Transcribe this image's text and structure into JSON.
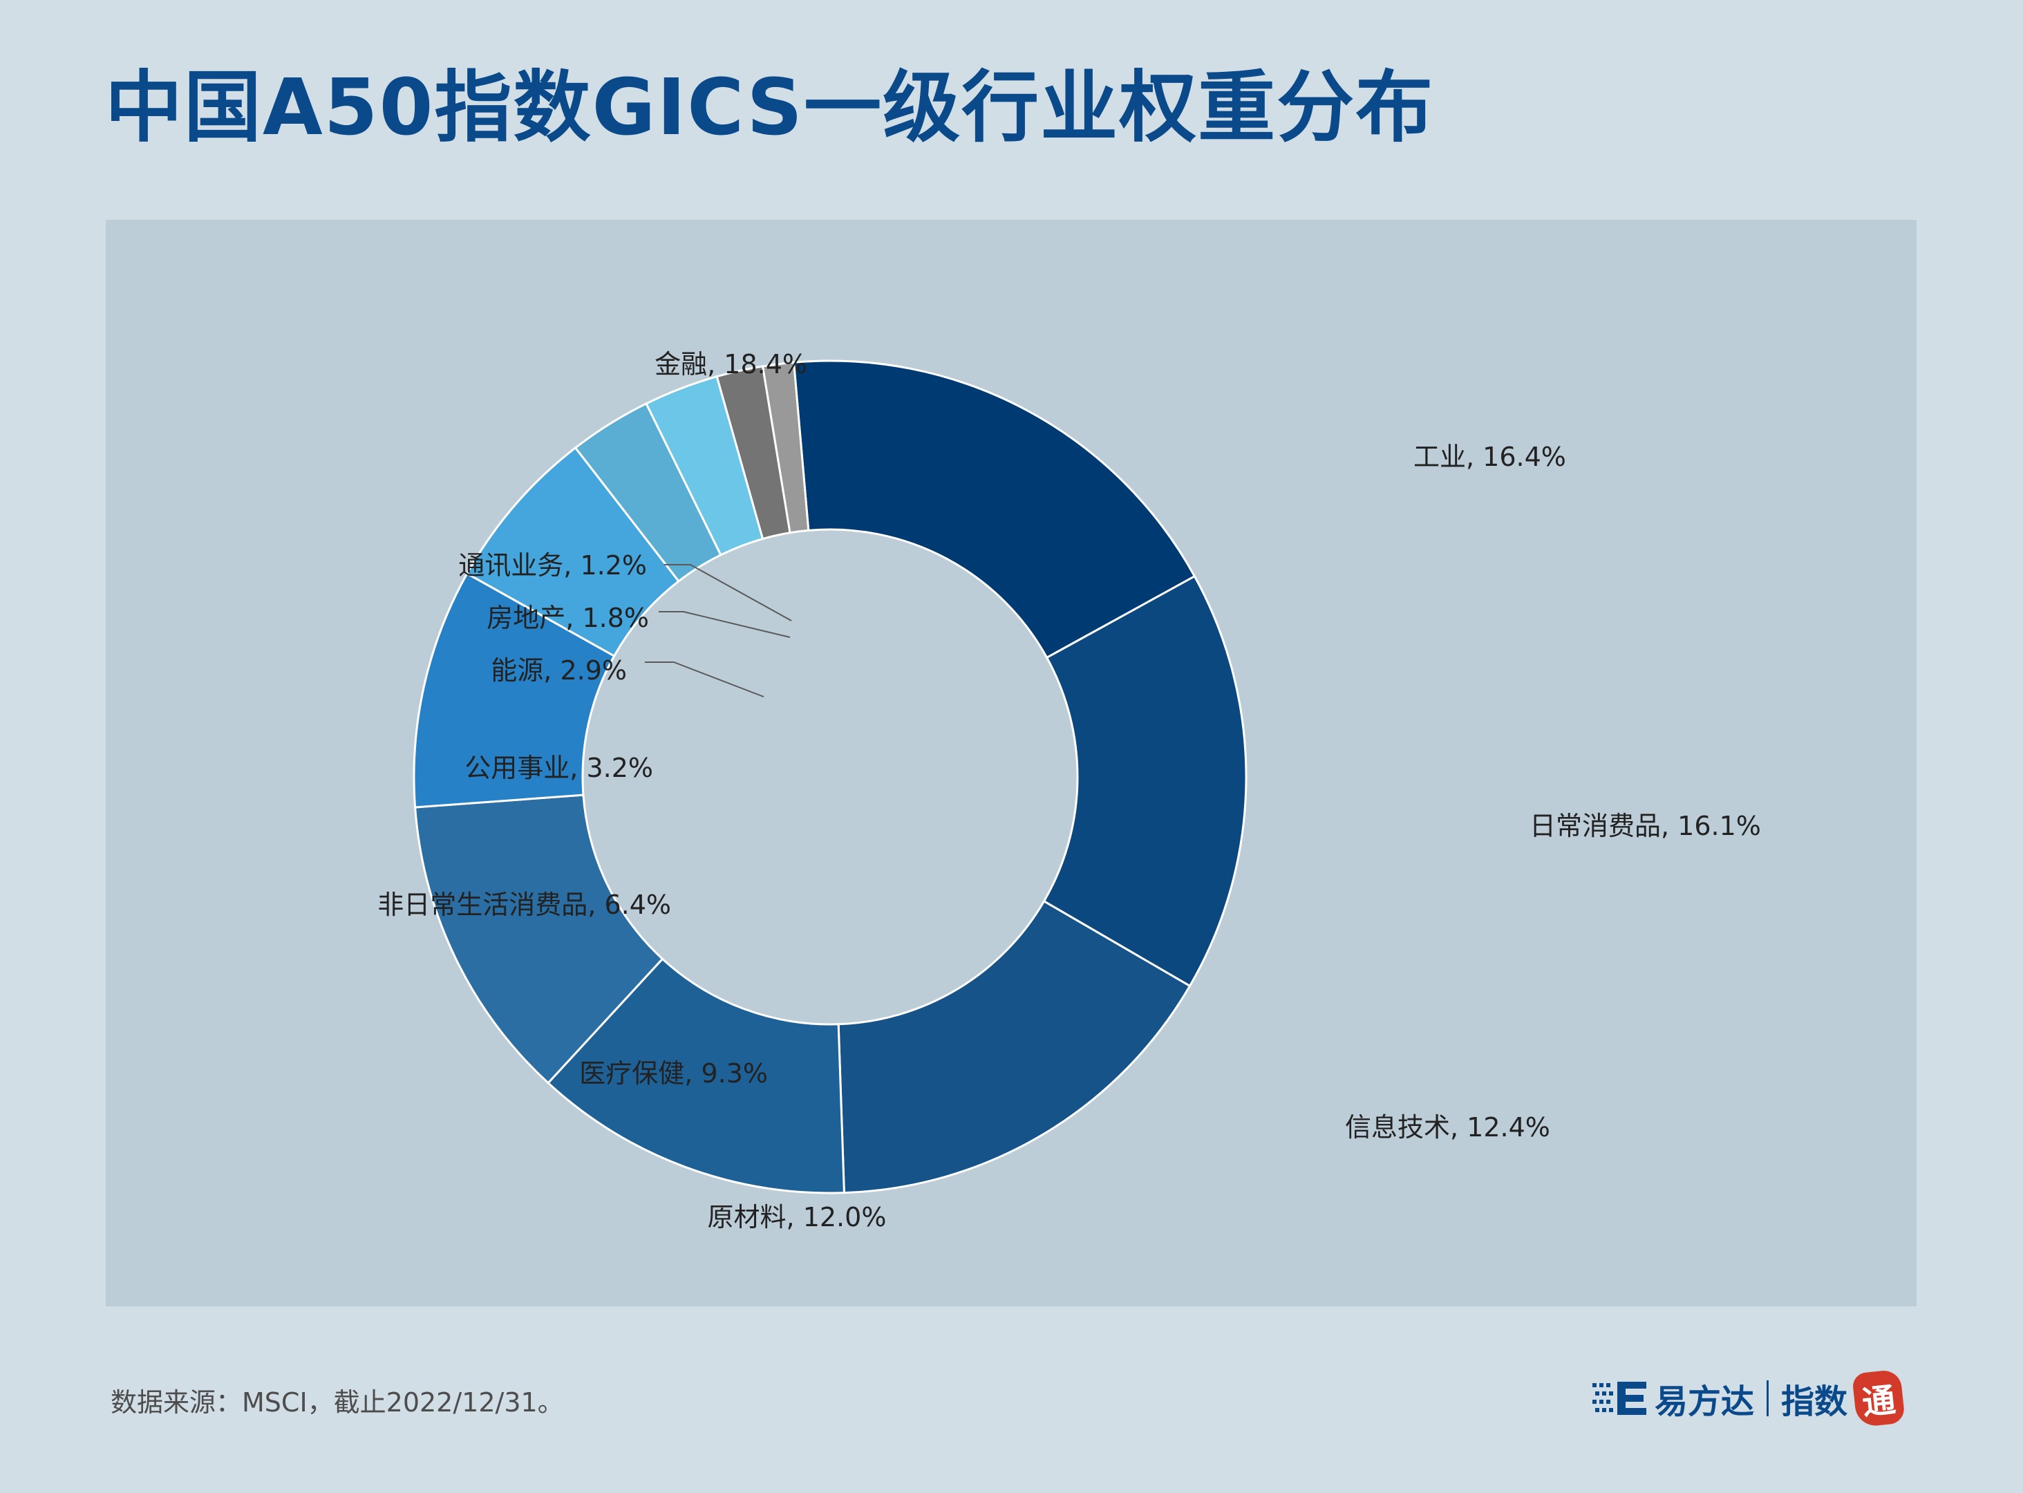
{
  "header": {
    "title": "中国A50指数GICS一级行业权重分布"
  },
  "chart_data": {
    "type": "pie",
    "title": "",
    "style": "donut",
    "slices": [
      {
        "label": "金融",
        "value": 18.4,
        "text": "金融, 18.4%",
        "color": "#003a73"
      },
      {
        "label": "工业",
        "value": 16.4,
        "text": "工业, 16.4%",
        "color": "#0b4880"
      },
      {
        "label": "日常消费品",
        "value": 16.1,
        "text": "日常消费品, 16.1%",
        "color": "#155389"
      },
      {
        "label": "信息技术",
        "value": 12.4,
        "text": "信息技术, 12.4%",
        "color": "#1e6197"
      },
      {
        "label": "原材料",
        "value": 12.0,
        "text": "原材料, 12.0%",
        "color": "#2a6ea3"
      },
      {
        "label": "医疗保健",
        "value": 9.3,
        "text": "医疗保健, 9.3%",
        "color": "#2781c6"
      },
      {
        "label": "非日常生活消费品",
        "value": 6.4,
        "text": "非日常生活消费品, 6.4%",
        "color": "#45a6dd"
      },
      {
        "label": "公用事业",
        "value": 3.2,
        "text": "公用事业, 3.2%",
        "color": "#5aaed4"
      },
      {
        "label": "能源",
        "value": 2.9,
        "text": "能源, 2.9%",
        "color": "#6cc6e8"
      },
      {
        "label": "房地产",
        "value": 1.8,
        "text": "房地产, 1.8%",
        "color": "#747474"
      },
      {
        "label": "通讯业务",
        "value": 1.2,
        "text": "通讯业务, 1.2%",
        "color": "#999999"
      }
    ]
  },
  "footer": {
    "source": "数据来源：MSCI，截止2022/12/31。",
    "logo_company": "易方达",
    "logo_product": "指数",
    "logo_seal": "通"
  },
  "colors": {
    "background": "#d2dee6",
    "panel": "#bccdd7",
    "title": "#0b4a8a"
  }
}
